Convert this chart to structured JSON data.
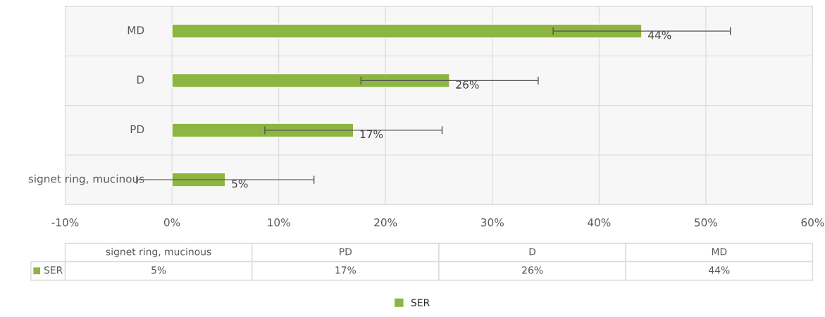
{
  "chart_data": {
    "type": "bar",
    "orientation": "horizontal",
    "categories": [
      "MD",
      "D",
      "PD",
      "signet ring, mucinous"
    ],
    "series": [
      {
        "name": "SER",
        "color": "#8db542",
        "values": [
          44,
          26,
          17,
          5
        ],
        "errors": [
          8.3,
          8.3,
          8.3,
          8.3
        ],
        "value_labels": [
          "44%",
          "26%",
          "17%",
          "5%"
        ]
      }
    ],
    "xlim": [
      -10,
      60
    ],
    "xticks": [
      {
        "value": -10,
        "label": "-10%"
      },
      {
        "value": 0,
        "label": "0%"
      },
      {
        "value": 10,
        "label": "10%"
      },
      {
        "value": 20,
        "label": "20%"
      },
      {
        "value": 30,
        "label": "30%"
      },
      {
        "value": 40,
        "label": "40%"
      },
      {
        "value": 50,
        "label": "50%"
      },
      {
        "value": 60,
        "label": "60%"
      }
    ],
    "grid": true,
    "legend": "bottom"
  }
}
